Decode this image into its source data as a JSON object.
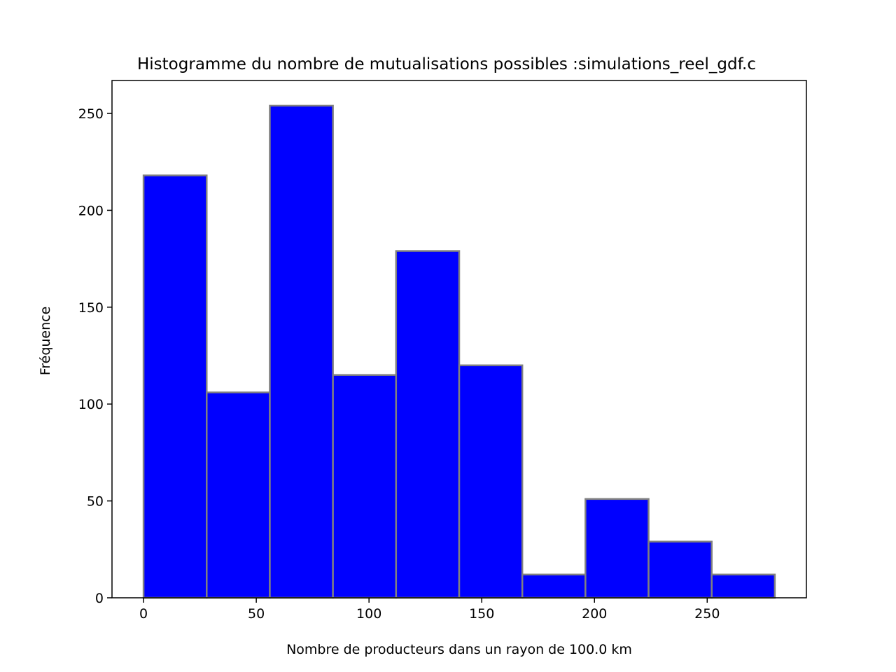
{
  "chart_data": {
    "type": "bar",
    "title": "Histogramme du nombre de mutualisations possibles :simulations_reel_gdf.c",
    "xlabel": "Nombre de producteurs dans un rayon de 100.0 km",
    "ylabel": "Fréquence",
    "bin_edges": [
      0,
      28,
      56,
      84,
      112,
      140,
      168,
      196,
      224,
      252,
      280
    ],
    "values": [
      218,
      106,
      254,
      115,
      179,
      120,
      12,
      51,
      29,
      12
    ],
    "xlim": [
      -14,
      294
    ],
    "ylim": [
      0,
      267
    ],
    "xticks": [
      0,
      50,
      100,
      150,
      200,
      250
    ],
    "xtick_labels": [
      "0",
      "50",
      "100",
      "150",
      "200",
      "250"
    ],
    "yticks": [
      0,
      50,
      100,
      150,
      200,
      250
    ],
    "ytick_labels": [
      "0",
      "50",
      "100",
      "150",
      "200",
      "250"
    ],
    "bar_color": "#0000ff",
    "edge_color": "#808080",
    "grid": false
  }
}
